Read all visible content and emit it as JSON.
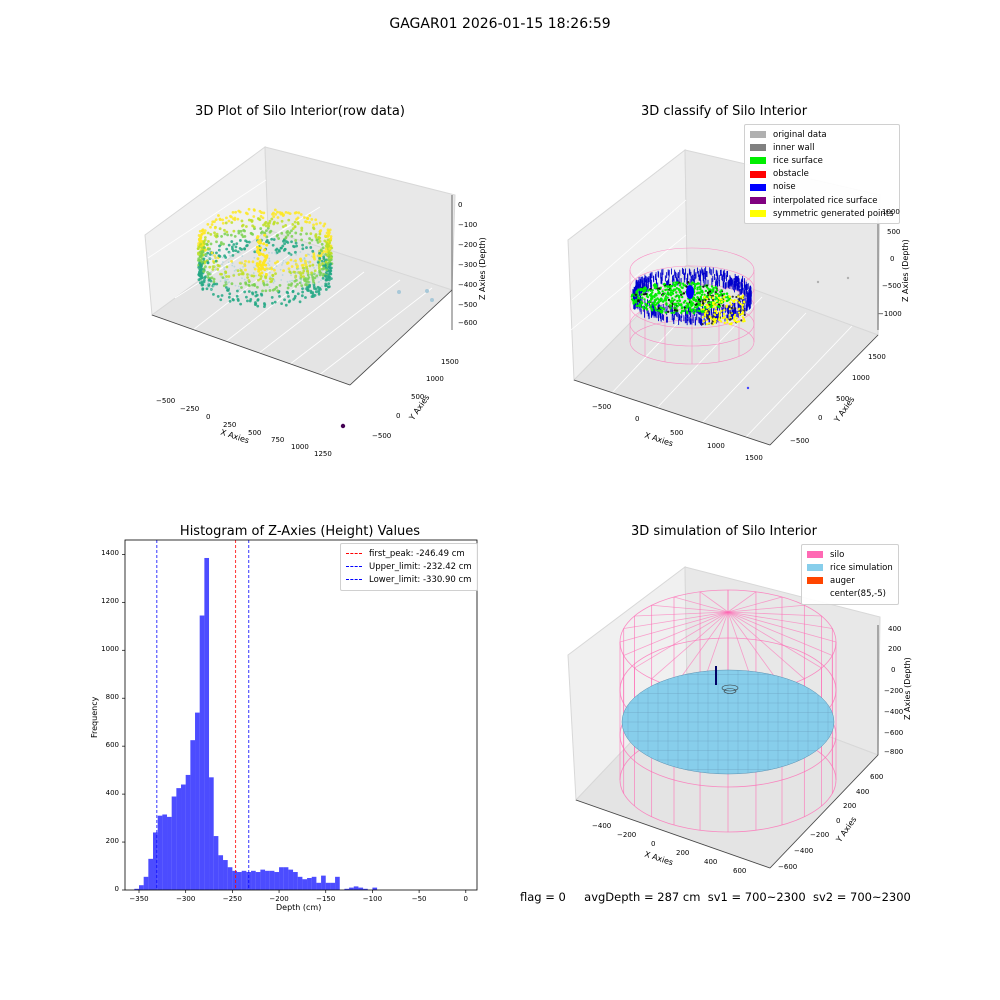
{
  "figure": {
    "suptitle": "GAGAR01 2026-01-15 18:26:59"
  },
  "panels": {
    "raw": {
      "title": "3D Plot of Silo Interior(row data)",
      "xlabel": "X Axies",
      "ylabel": "Y Axies",
      "zlabel": "Z Axies (Depth)",
      "xticks": [
        "−500",
        "−250",
        "0",
        "250",
        "500",
        "750",
        "1000",
        "1250"
      ],
      "yticks": [
        "−500",
        "0",
        "500",
        "1000",
        "1500"
      ],
      "zticks": [
        "0",
        "−100",
        "−200",
        "−300",
        "−400",
        "−500",
        "−600"
      ]
    },
    "classify": {
      "title": "3D classify of Silo Interior",
      "xlabel": "X Axies",
      "ylabel": "Y Axies",
      "zlabel": "Z Axies (Depth)",
      "xticks": [
        "−500",
        "0",
        "500",
        "1000",
        "1500"
      ],
      "yticks": [
        "−500",
        "0",
        "500",
        "1000",
        "1500"
      ],
      "zticks": [
        "1000",
        "500",
        "0",
        "−500",
        "−1000"
      ],
      "legend": [
        {
          "label": "original data",
          "color": "#b0b0b0"
        },
        {
          "label": "inner wall",
          "color": "#808080"
        },
        {
          "label": "rice surface",
          "color": "#00ee00"
        },
        {
          "label": "obstacle",
          "color": "#ff0000"
        },
        {
          "label": "noise",
          "color": "#0000ff"
        },
        {
          "label": "interpolated rice surface",
          "color": "#800080"
        },
        {
          "label": "symmetric generated points",
          "color": "#ffff00"
        }
      ]
    },
    "simulation": {
      "title": "3D simulation of Silo Interior",
      "xlabel": "X Axies",
      "ylabel": "Y Axies",
      "zlabel": "Z Axies (Depth)",
      "xticks": [
        "−400",
        "−200",
        "0",
        "200",
        "400",
        "600"
      ],
      "yticks": [
        "−600",
        "−400",
        "−200",
        "0",
        "200",
        "400",
        "600"
      ],
      "zticks": [
        "400",
        "200",
        "0",
        "−200",
        "−400",
        "−600",
        "−800"
      ],
      "legend": [
        {
          "label": "silo",
          "color": "#ff69b4"
        },
        {
          "label": "rice simulation",
          "color": "#87ceeb"
        },
        {
          "label": "auger",
          "color": "#ff4500"
        },
        {
          "label": "center(85,-5)",
          "color": "#ffffff"
        }
      ]
    }
  },
  "chart_data": {
    "type": "bar",
    "title": "Histogram of Z-Axies (Height) Values",
    "xlabel": "Depth (cm)",
    "ylabel": "Frequency",
    "xlim": [
      -365,
      12
    ],
    "ylim": [
      0,
      1460
    ],
    "xticks": [
      -350,
      -300,
      -250,
      -200,
      -150,
      -100,
      -50,
      0
    ],
    "yticks": [
      0,
      200,
      400,
      600,
      800,
      1000,
      1200,
      1400
    ],
    "bin_width": 5,
    "bin_start": -355,
    "values": [
      5,
      20,
      55,
      130,
      240,
      310,
      315,
      305,
      390,
      425,
      440,
      480,
      625,
      740,
      1145,
      1385,
      470,
      225,
      145,
      125,
      95,
      80,
      75,
      80,
      75,
      80,
      75,
      85,
      80,
      80,
      75,
      95,
      95,
      85,
      75,
      55,
      45,
      50,
      55,
      30,
      60,
      30,
      30,
      55,
      0,
      5,
      10,
      15,
      10,
      5,
      0,
      10,
      0
    ],
    "bar_color": "#0000ff",
    "vlines": [
      {
        "label": "first_peak: -246.49 cm",
        "x": -246.49,
        "color": "#ff0000"
      },
      {
        "label": "Upper_limit: -232.42 cm",
        "x": -232.42,
        "color": "#0000ff"
      },
      {
        "label": "Lower_limit: -330.90 cm",
        "x": -330.9,
        "color": "#0000ff"
      }
    ],
    "tick_labels": [
      "−350",
      "−300",
      "−250",
      "−200",
      "−150",
      "−100",
      "−50",
      "0"
    ]
  },
  "footer": {
    "flag": "flag = 0",
    "avg": "avgDepth = 287 cm",
    "sv1": "sv1 = 700~2300",
    "sv2": "sv2 = 700~2300"
  }
}
